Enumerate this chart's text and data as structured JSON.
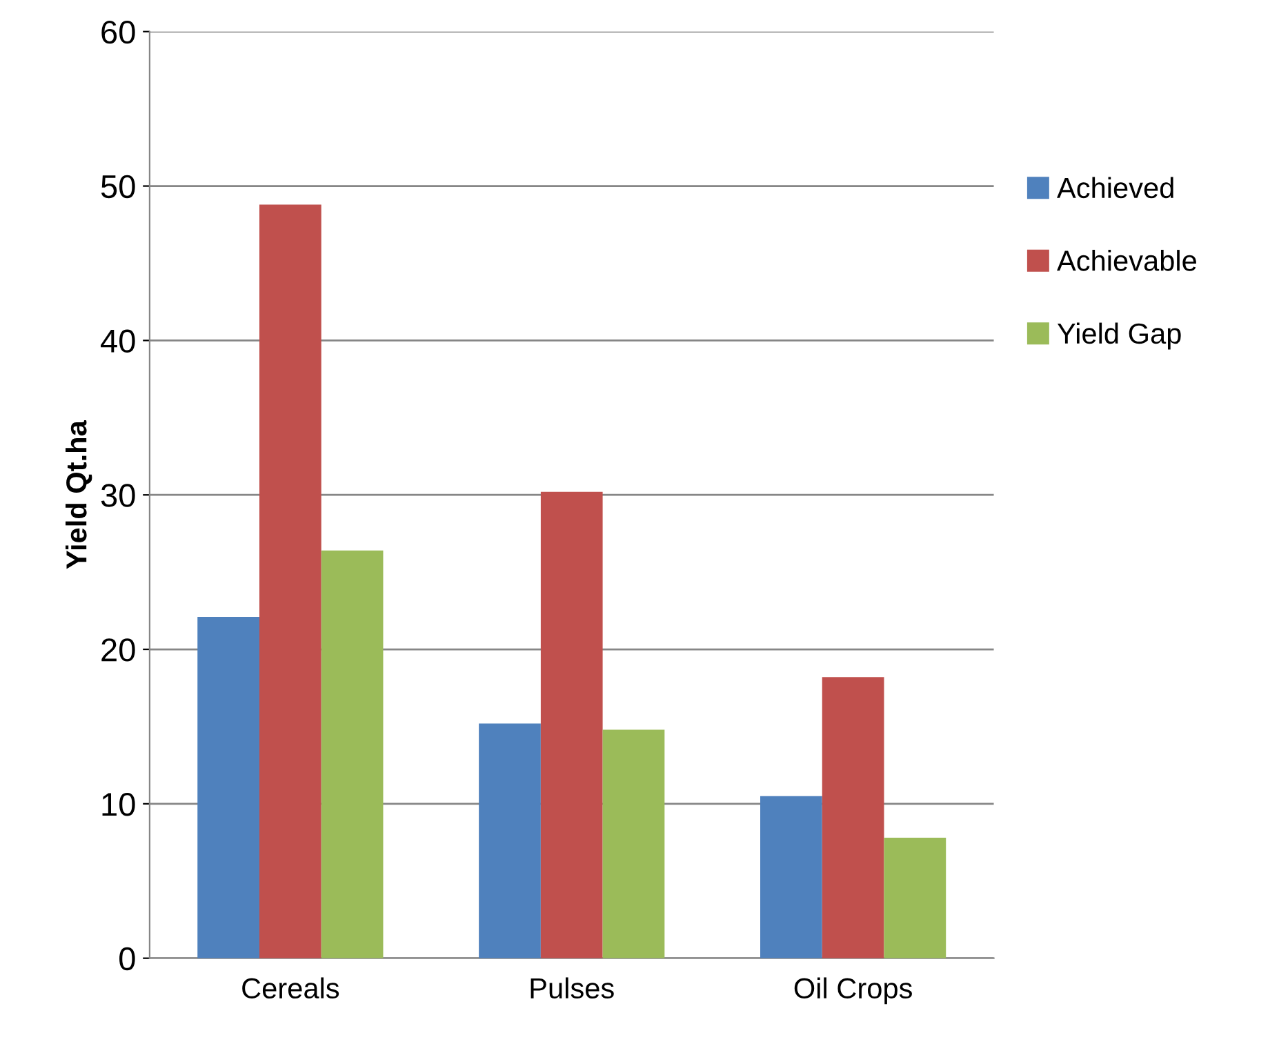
{
  "chart_data": {
    "type": "bar",
    "ylabel": "Yield Qt.ha",
    "categories": [
      "Cereals",
      "Pulses",
      "Oil Crops"
    ],
    "series": [
      {
        "name": "Achieved",
        "color": "#4f81bd",
        "values": [
          22.1,
          15.2,
          10.5
        ]
      },
      {
        "name": "Achievable",
        "color": "#c0504d",
        "values": [
          48.8,
          30.2,
          18.2
        ]
      },
      {
        "name": "Yield Gap",
        "color": "#9bbb59",
        "values": [
          26.4,
          14.8,
          7.8
        ]
      }
    ],
    "ylim": [
      0,
      60
    ],
    "yticks": [
      0,
      10,
      20,
      30,
      40,
      50,
      60
    ],
    "grid": "y",
    "legend": "right"
  }
}
